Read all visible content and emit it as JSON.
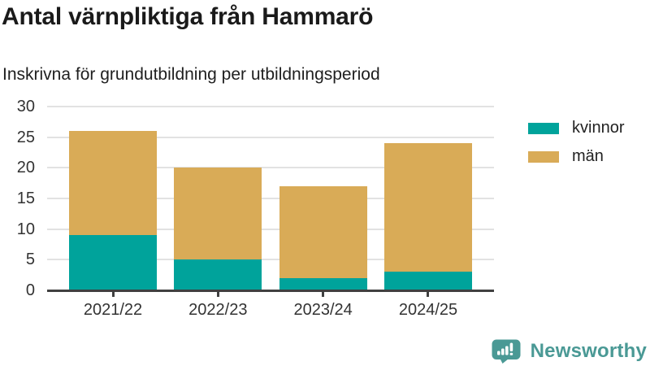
{
  "header": {
    "title": "Antal värnpliktiga från Hammarö",
    "subtitle": "Inskrivna för grundutbildning per utbildningsperiod"
  },
  "chart_data": {
    "type": "bar",
    "stacked": true,
    "categories": [
      "2021/22",
      "2022/23",
      "2023/24",
      "2024/25"
    ],
    "series": [
      {
        "name": "kvinnor",
        "color": "#00a39b",
        "values": [
          9,
          5,
          2,
          3
        ]
      },
      {
        "name": "män",
        "color": "#d9ab57",
        "values": [
          17,
          15,
          15,
          21
        ]
      }
    ],
    "totals": [
      26,
      20,
      17,
      24
    ],
    "yticks": [
      0,
      5,
      10,
      15,
      20,
      25,
      30
    ],
    "ylim": [
      0,
      30
    ],
    "xlabel": "",
    "ylabel": "",
    "grid": true,
    "legend_position": "right",
    "colors": {
      "gridline": "#e2e2e2",
      "axis": "#404040",
      "tick_text": "#333333"
    }
  },
  "footer": {
    "brand": "Newsworthy",
    "brand_color": "#4a9995",
    "logo_icon": "bar-chart-speech-bubble-icon"
  }
}
